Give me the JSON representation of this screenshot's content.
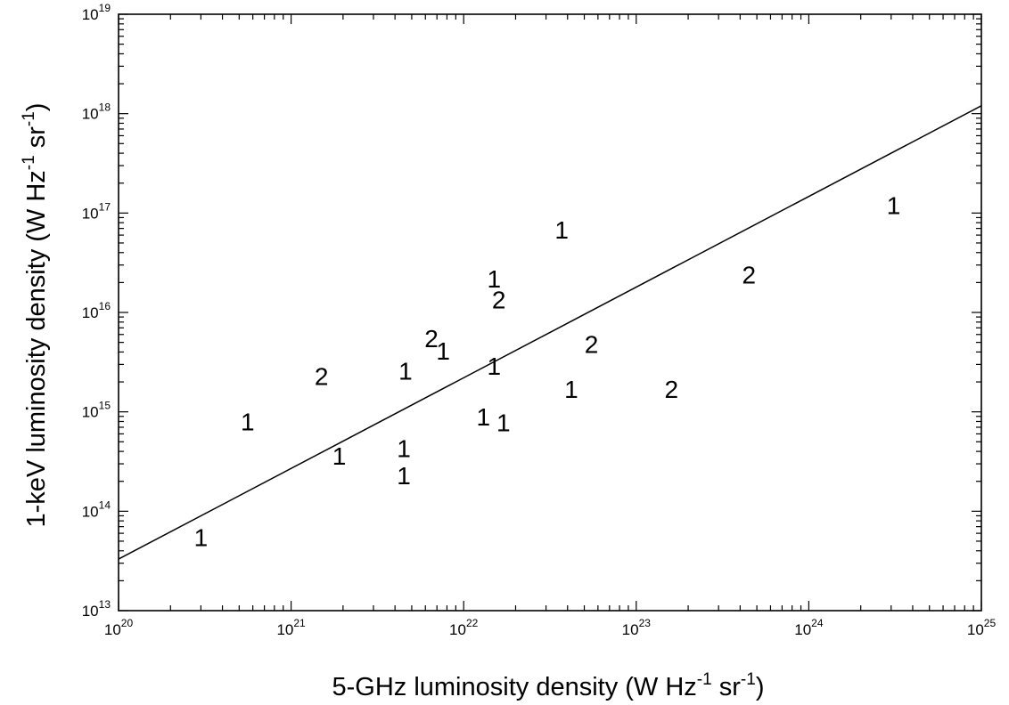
{
  "chart_data": {
    "type": "scatter",
    "xlabel": "5-GHz luminosity density (W Hz-1 sr-1)",
    "ylabel": "1-keV luminosity density (W Hz-1 sr-1)",
    "xlabel_parts": [
      "5-GHz luminosity density (W Hz",
      "-1",
      " sr",
      "-1",
      ")"
    ],
    "ylabel_parts": [
      "1-keV luminosity density (W Hz",
      "-1",
      " sr",
      "-1",
      ")"
    ],
    "xscale": "log",
    "yscale": "log",
    "xlim": [
      1e+20,
      1e+25
    ],
    "ylim": [
      10000000000000.0,
      1e+19
    ],
    "x_ticks": [
      {
        "base": "10",
        "exp": "20",
        "value": 1e+20
      },
      {
        "base": "10",
        "exp": "21",
        "value": 1e+21
      },
      {
        "base": "10",
        "exp": "22",
        "value": 1e+22
      },
      {
        "base": "10",
        "exp": "23",
        "value": 1e+23
      },
      {
        "base": "10",
        "exp": "24",
        "value": 1e+24
      },
      {
        "base": "10",
        "exp": "25",
        "value": 1e+25
      }
    ],
    "y_ticks": [
      {
        "base": "10",
        "exp": "13",
        "value": 10000000000000.0
      },
      {
        "base": "10",
        "exp": "14",
        "value": 100000000000000.0
      },
      {
        "base": "10",
        "exp": "15",
        "value": 1000000000000000.0
      },
      {
        "base": "10",
        "exp": "16",
        "value": 1e+16
      },
      {
        "base": "10",
        "exp": "17",
        "value": 1e+17
      },
      {
        "base": "10",
        "exp": "18",
        "value": 1e+18
      },
      {
        "base": "10",
        "exp": "19",
        "value": 1e+19
      }
    ],
    "grid": false,
    "points": [
      {
        "x": 3e+20,
        "y": 55000000000000.0,
        "label": "1"
      },
      {
        "x": 5.6e+20,
        "y": 800000000000000.0,
        "label": "1"
      },
      {
        "x": 1.5e+21,
        "y": 2300000000000000.0,
        "label": "2"
      },
      {
        "x": 1.9e+21,
        "y": 360000000000000.0,
        "label": "1"
      },
      {
        "x": 4.5e+21,
        "y": 430000000000000.0,
        "label": "1"
      },
      {
        "x": 4.5e+21,
        "y": 230000000000000.0,
        "label": "1"
      },
      {
        "x": 4.6e+21,
        "y": 2600000000000000.0,
        "label": "1"
      },
      {
        "x": 6.5e+21,
        "y": 5500000000000000.0,
        "label": "2"
      },
      {
        "x": 7.6e+21,
        "y": 4100000000000000.0,
        "label": "1"
      },
      {
        "x": 1.3e+22,
        "y": 900000000000000.0,
        "label": "1"
      },
      {
        "x": 1.5e+22,
        "y": 2900000000000000.0,
        "label": "1"
      },
      {
        "x": 1.5e+22,
        "y": 2.2e+16,
        "label": "1"
      },
      {
        "x": 1.6e+22,
        "y": 1.35e+16,
        "label": "2"
      },
      {
        "x": 1.7e+22,
        "y": 780000000000000.0,
        "label": "1"
      },
      {
        "x": 3.7e+22,
        "y": 6.8e+16,
        "label": "1"
      },
      {
        "x": 4.2e+22,
        "y": 1700000000000000.0,
        "label": "1"
      },
      {
        "x": 5.5e+22,
        "y": 4800000000000000.0,
        "label": "2"
      },
      {
        "x": 1.6e+23,
        "y": 1700000000000000.0,
        "label": "2"
      },
      {
        "x": 4.5e+23,
        "y": 2.4e+16,
        "label": "2"
      },
      {
        "x": 3.1e+24,
        "y": 1.2e+17,
        "label": "1"
      }
    ],
    "fit_line": {
      "x": [
        1e+20,
        1e+25
      ],
      "y": [
        33000000000000.0,
        1.2e+18
      ]
    }
  }
}
